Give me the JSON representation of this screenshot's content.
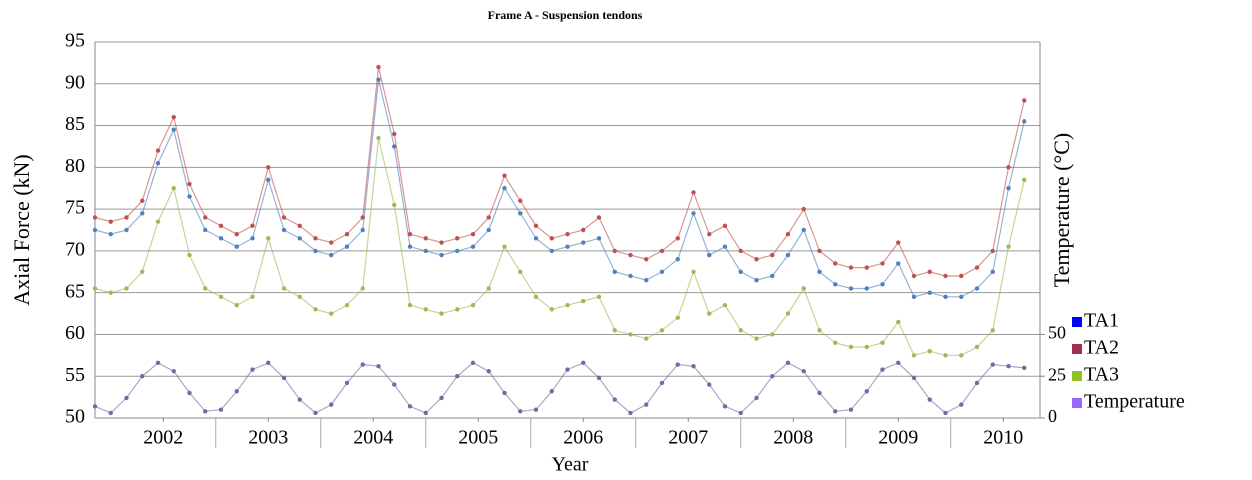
{
  "chart_data": {
    "type": "scatter",
    "title": "Frame A - Suspension tendons",
    "x_label": "Year",
    "y_label": "Axial Force (kN)",
    "y2_label": "Temperature (°C)",
    "x": [
      2001.85,
      2002.0,
      2002.15,
      2002.3,
      2002.45,
      2002.6,
      2002.75,
      2002.9,
      2003.05,
      2003.2,
      2003.35,
      2003.5,
      2003.65,
      2003.8,
      2003.95,
      2004.1,
      2004.25,
      2004.4,
      2004.55,
      2004.7,
      2004.85,
      2005.0,
      2005.15,
      2005.3,
      2005.45,
      2005.6,
      2005.75,
      2005.9,
      2006.05,
      2006.2,
      2006.35,
      2006.5,
      2006.65,
      2006.8,
      2006.95,
      2007.1,
      2007.25,
      2007.4,
      2007.55,
      2007.7,
      2007.85,
      2008.0,
      2008.15,
      2008.3,
      2008.45,
      2008.6,
      2008.75,
      2008.9,
      2009.05,
      2009.2,
      2009.35,
      2009.5,
      2009.65,
      2009.8,
      2009.95,
      2010.1,
      2010.25,
      2010.4,
      2010.55,
      2010.7
    ],
    "series": [
      {
        "name": "TA1",
        "color": "#4f81bd",
        "legend_color": "#0000ff",
        "values": [
          72.5,
          72,
          72.5,
          74.5,
          80.5,
          84.5,
          76.5,
          72.5,
          71.5,
          70.5,
          71.5,
          78.5,
          72.5,
          71.5,
          70,
          69.5,
          70.5,
          72.5,
          90.5,
          82.5,
          70.5,
          70,
          69.5,
          70,
          70.5,
          72.5,
          77.5,
          74.5,
          71.5,
          70,
          70.5,
          71,
          71.5,
          67.5,
          67,
          66.5,
          67.5,
          69,
          74.5,
          69.5,
          70.5,
          67.5,
          66.5,
          67,
          69.5,
          72.5,
          67.5,
          66,
          65.5,
          65.5,
          66,
          68.5,
          64.5,
          65,
          64.5,
          64.5,
          65.5,
          67.5,
          77.5,
          85.5
        ]
      },
      {
        "name": "TA2",
        "color": "#c0504d",
        "legend_color": "#a0304d",
        "values": [
          74,
          73.5,
          74,
          76,
          82,
          86,
          78,
          74,
          73,
          72,
          73,
          80,
          74,
          73,
          71.5,
          71,
          72,
          74,
          92,
          84,
          72,
          71.5,
          71,
          71.5,
          72,
          74,
          79,
          76,
          73,
          71.5,
          72,
          72.5,
          74,
          70,
          69.5,
          69,
          70,
          71.5,
          77,
          72,
          73,
          70,
          69,
          69.5,
          72,
          75,
          70,
          68.5,
          68,
          68,
          68.5,
          71,
          67,
          67.5,
          67,
          67,
          68,
          70,
          80,
          88
        ]
      },
      {
        "name": "TA3",
        "color": "#9bbb59",
        "legend_color": "#8fc31f",
        "values": [
          65.5,
          65,
          65.5,
          67.5,
          73.5,
          77.5,
          69.5,
          65.5,
          64.5,
          63.5,
          64.5,
          71.5,
          65.5,
          64.5,
          63,
          62.5,
          63.5,
          65.5,
          83.5,
          75.5,
          63.5,
          63,
          62.5,
          63,
          63.5,
          65.5,
          70.5,
          67.5,
          64.5,
          63,
          63.5,
          64,
          64.5,
          60.5,
          60,
          59.5,
          60.5,
          62,
          67.5,
          62.5,
          63.5,
          60.5,
          59.5,
          60,
          62.5,
          65.5,
          60.5,
          59,
          58.5,
          58.5,
          59,
          61.5,
          57.5,
          58,
          57.5,
          57.5,
          58.5,
          60.5,
          70.5,
          78.5
        ]
      },
      {
        "name": "Temperature",
        "color": "#8064a2",
        "legend_color": "#9966ff",
        "axis": "y2",
        "values": [
          7,
          3,
          12,
          25,
          33,
          28,
          15,
          4,
          5,
          16,
          29,
          33,
          24,
          11,
          3,
          8,
          21,
          32,
          31,
          20,
          7,
          3,
          12,
          25,
          33,
          28,
          15,
          4,
          5,
          16,
          29,
          33,
          24,
          11,
          3,
          8,
          21,
          32,
          31,
          20,
          7,
          3,
          12,
          25,
          33,
          28,
          15,
          4,
          5,
          16,
          29,
          33,
          24,
          11,
          3,
          8,
          21,
          32,
          31,
          30
        ]
      }
    ],
    "xlim": [
      2001.85,
      2010.85
    ],
    "xticks": [
      {
        "value": 2002.5,
        "label": "2002"
      },
      {
        "value": 2003.5,
        "label": "2003"
      },
      {
        "value": 2004.5,
        "label": "2004"
      },
      {
        "value": 2005.5,
        "label": "2005"
      },
      {
        "value": 2006.5,
        "label": "2006"
      },
      {
        "value": 2007.5,
        "label": "2007"
      },
      {
        "value": 2008.5,
        "label": "2008"
      },
      {
        "value": 2009.5,
        "label": "2009"
      },
      {
        "value": 2010.5,
        "label": "2010"
      }
    ],
    "ylim": [
      50,
      95
    ],
    "yticks": [
      50,
      55,
      60,
      65,
      70,
      75,
      80,
      85,
      90,
      95
    ],
    "y2lim": [
      0,
      225
    ],
    "y2ticks": [
      0,
      25,
      50
    ],
    "grid": true,
    "legend": "right"
  }
}
